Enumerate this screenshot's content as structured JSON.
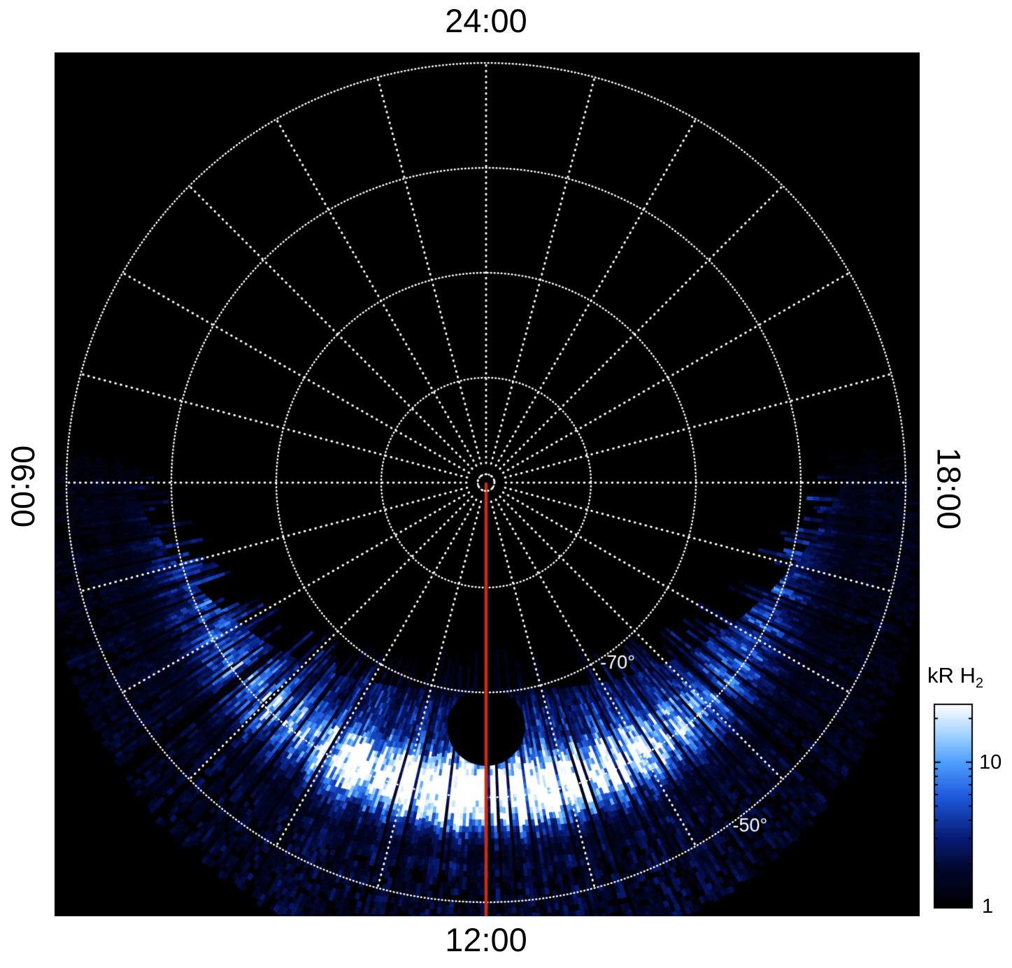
{
  "figure": {
    "background": "#ffffff",
    "plot_background": "#000000"
  },
  "chart_data": {
    "type": "heatmap",
    "projection": "polar",
    "description": "Polar projection of H2 auroral emission versus local time (angle) and latitude (radius), southern hemisphere, pole at center",
    "angular_axis": {
      "unit": "local time",
      "spoke_interval_hours": 1,
      "labels": [
        {
          "time": 24,
          "label": "24:00",
          "position": "top"
        },
        {
          "time": 6,
          "label": "06:00",
          "position": "left"
        },
        {
          "time": 12,
          "label": "12:00",
          "position": "bottom"
        },
        {
          "time": 18,
          "label": "18:00",
          "position": "right"
        }
      ]
    },
    "radial_axis": {
      "unit": "latitude (degrees)",
      "pole_latitude": -90,
      "ring_latitudes": [
        -89.2,
        -80,
        -70,
        -60,
        -50
      ],
      "labeled_rings": [
        {
          "value": -70,
          "label": "-70°",
          "label_local_time": 14.4
        },
        {
          "value": -50,
          "label": "-50°",
          "label_local_time": 14.5
        }
      ],
      "outer_latitude": -44.3
    },
    "grid": {
      "color": "#ffffff",
      "style": "dotted"
    },
    "colorbar": {
      "title_main": "kR H",
      "title_sub": "2",
      "scale": "log",
      "min": 1,
      "max": 25,
      "major_ticks": [
        {
          "value": 10,
          "label": "10"
        },
        {
          "value": 1,
          "label": "1"
        }
      ],
      "minor_ticks": [
        2,
        3,
        4,
        5,
        6,
        7,
        8,
        9,
        20
      ],
      "stops": [
        {
          "u": 0.0,
          "color": "#000000"
        },
        {
          "u": 0.18,
          "color": "#020628"
        },
        {
          "u": 0.35,
          "color": "#081c78"
        },
        {
          "u": 0.55,
          "color": "#1e5adc"
        },
        {
          "u": 0.72,
          "color": "#50a0ff"
        },
        {
          "u": 0.85,
          "color": "#a0d2ff"
        },
        {
          "u": 1.0,
          "color": "#ffffff"
        }
      ]
    },
    "features": {
      "emission_region": {
        "local_time_range": [
          5.6,
          18.45
        ],
        "inner_latitude_at_noon": -70.5,
        "inner_latitude_at_dawn_dusk": -54,
        "outer_latitude": -44.3,
        "texture": "patchy radial streaks"
      },
      "bright_arc": {
        "local_time_center": 12,
        "local_time_sigma": 1.9,
        "latitude_center": -60.5,
        "latitude_sigma": 3.2,
        "boost": 0.85
      },
      "dark_bite": {
        "local_time": 12,
        "latitude": -66.7,
        "radius_deg": 3.7
      },
      "meridian_line": {
        "local_time": 12,
        "color": "#cf2c0e"
      }
    }
  }
}
